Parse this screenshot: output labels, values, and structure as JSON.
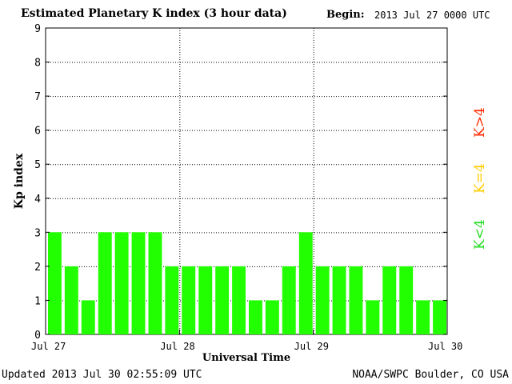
{
  "header": {
    "title": "Estimated Planetary K index (3 hour data)",
    "begin_label": "Begin:",
    "begin_value": "2013 Jul 27 0000 UTC"
  },
  "footer": {
    "updated": "Updated 2013 Jul 30 02:55:09 UTC",
    "credit": "NOAA/SWPC Boulder, CO USA"
  },
  "legend": [
    {
      "label": "K>4",
      "color": "#ff2a00"
    },
    {
      "label": "K=4",
      "color": "#ffcc00"
    },
    {
      "label": "K<4",
      "color": "#22dd22"
    }
  ],
  "chart_data": {
    "type": "bar",
    "title": "Estimated Planetary K index (3 hour data)",
    "xlabel": "Universal Time",
    "ylabel": "Kp index",
    "ylim": [
      0,
      9
    ],
    "yticks": [
      0,
      1,
      2,
      3,
      4,
      5,
      6,
      7,
      8,
      9
    ],
    "xticks": [
      "Jul 27",
      "Jul 28",
      "Jul 29",
      "Jul 30"
    ],
    "grid": true,
    "bar_color": "#22ff00",
    "values": [
      3,
      2,
      1,
      3,
      3,
      3,
      3,
      2,
      2,
      2,
      2,
      2,
      1,
      1,
      2,
      3,
      2,
      2,
      2,
      1,
      2,
      2,
      1,
      1
    ]
  }
}
